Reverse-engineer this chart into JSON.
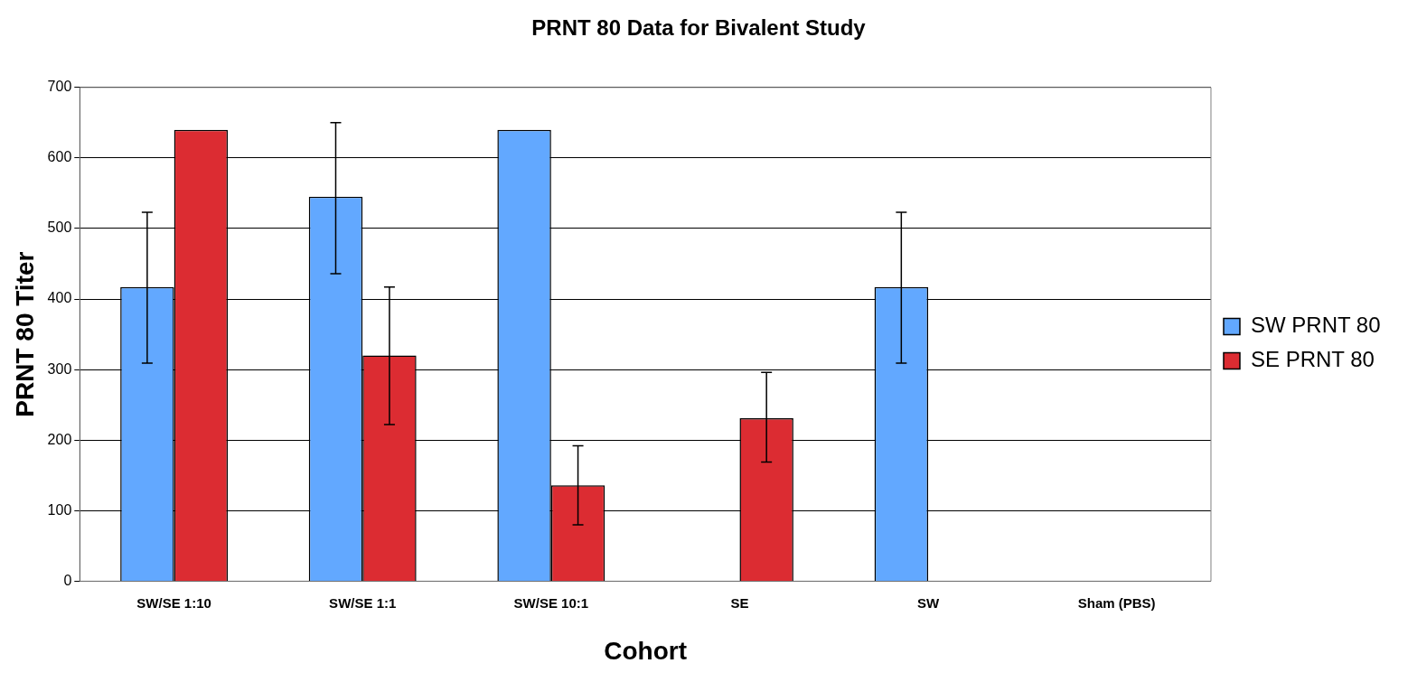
{
  "chart_data": {
    "type": "bar",
    "title": "PRNT 80 Data for Bivalent Study",
    "xlabel": "Cohort",
    "ylabel": "PRNT 80 Titer",
    "categories": [
      "SW/SE 1:10",
      "SW/SE 1:1",
      "SW/SE 10:1",
      "SE",
      "SW",
      "Sham (PBS)"
    ],
    "series": [
      {
        "name": "SW PRNT 80",
        "color": "#62a8ff",
        "values": [
          417,
          545,
          640,
          0,
          417,
          0
        ],
        "errors": [
          [
            309,
            523
          ],
          [
            436,
            650
          ],
          null,
          null,
          [
            309,
            523
          ],
          null
        ]
      },
      {
        "name": "SE PRNT 80",
        "color": "#dc2c32",
        "values": [
          640,
          320,
          136,
          231,
          0,
          0
        ],
        "errors": [
          null,
          [
            222,
            417
          ],
          [
            80,
            192
          ],
          [
            169,
            296
          ],
          null,
          null
        ]
      }
    ],
    "ylim": [
      0,
      700
    ],
    "yticks": [
      0,
      100,
      200,
      300,
      400,
      500,
      600,
      700
    ],
    "grid": "y",
    "legend": "right"
  }
}
